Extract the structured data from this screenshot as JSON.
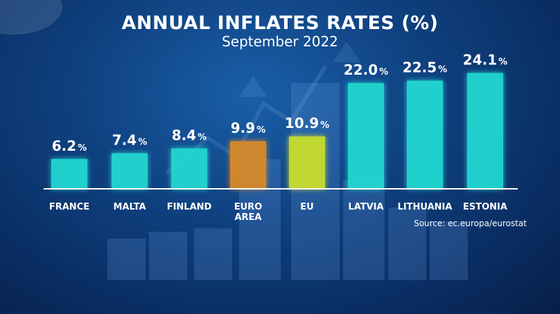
{
  "colors": {
    "default_bar": "#21d8d2",
    "euro_area_bar": "#d98a2a",
    "eu_bar": "#c9de2e",
    "baseline": "#ffffff"
  },
  "chart_data": {
    "type": "bar",
    "title": "ANNUAL INFLATES RATES (%)",
    "subtitle": "September 2022",
    "xlabel": "",
    "ylabel": "",
    "ylim": [
      0,
      25
    ],
    "categories": [
      "FRANCE",
      "MALTA",
      "FINLAND",
      "EURO AREA",
      "EU",
      "LATVIA",
      "LITHUANIA",
      "ESTONIA"
    ],
    "values": [
      6.2,
      7.4,
      8.4,
      9.9,
      10.9,
      22.0,
      22.5,
      24.1
    ],
    "value_labels": [
      "6.2",
      "7.4",
      "8.4",
      "9.9",
      "10.9",
      "22.0",
      "22.5",
      "24.1"
    ],
    "unit": "%",
    "bar_colors": [
      "default_bar",
      "default_bar",
      "default_bar",
      "euro_area_bar",
      "eu_bar",
      "default_bar",
      "default_bar",
      "default_bar"
    ],
    "source": "Source: ec.europa/eurostat"
  }
}
